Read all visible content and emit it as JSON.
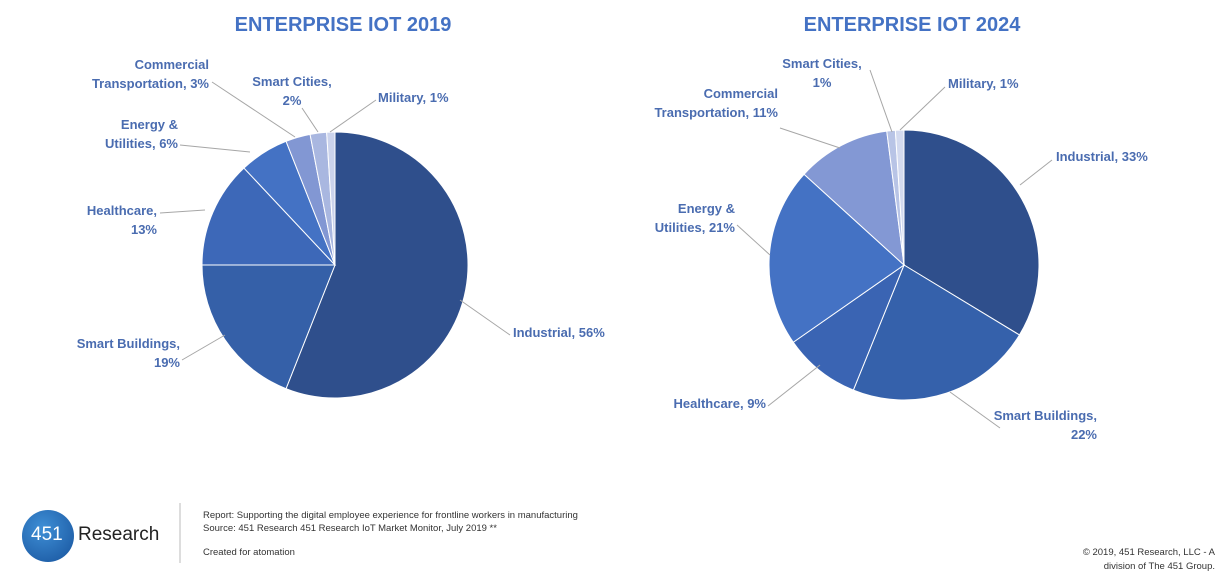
{
  "chart_data": [
    {
      "type": "pie",
      "title": "ENTERPRISE IOT 2019",
      "categories": [
        "Industrial,",
        "Smart Buildings,",
        "Healthcare,",
        "Energy & Utilities,",
        "Commercial Transportation,",
        "Smart Cities,",
        "Military,"
      ],
      "values": [
        56,
        19,
        13,
        6,
        3,
        2,
        1
      ],
      "value_labels": [
        "56%",
        "19%",
        "13%",
        "6%",
        "3%",
        "2%",
        "1%"
      ],
      "colors": [
        "#2f4f8c",
        "#3560a8",
        "#3d68b8",
        "#4472c4",
        "#8297d3",
        "#a9b7e0",
        "#cbd3ec"
      ]
    },
    {
      "type": "pie",
      "title": "ENTERPRISE IOT 2024",
      "categories": [
        "Industrial,",
        "Smart Buildings,",
        "Healthcare,",
        "Energy & Utilities,",
        "Commercial Transportation,",
        "Smart Cities,",
        "Military,"
      ],
      "values": [
        33,
        22,
        9,
        21,
        11,
        1,
        1
      ],
      "value_labels": [
        "33%",
        "22%",
        "9%",
        "21%",
        "11%",
        "1%",
        "1%"
      ],
      "colors": [
        "#2f4f8c",
        "#3561ab",
        "#3a64b3",
        "#4472c4",
        "#8398d4",
        "#b8c4e6",
        "#d3daef"
      ]
    }
  ],
  "footer": {
    "logo": "451",
    "brand": "Research",
    "report": "Report: Supporting the digital employee experience for frontline workers in manufacturing",
    "source": "Source: 451 Research 451 Research IoT Market Monitor, July 2019 **",
    "created": "Created for atomation",
    "copyright_1": "© 2019, 451 Research, LLC - A",
    "copyright_2": "division of The 451 Group."
  }
}
